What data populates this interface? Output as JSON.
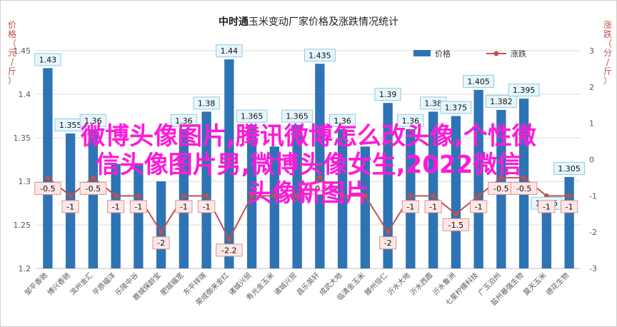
{
  "chart_data": {
    "type": "bar",
    "title_prefix": "中时通",
    "title_rest": "玉米变动厂家价格及涨跌情况统计",
    "ylabel_left": "价格（元/斤）",
    "ylabel_right": "涨跌（分/斤）",
    "ylim_left": [
      1.2,
      1.45
    ],
    "yticks_left": [
      "1.2",
      "1.25",
      "1.3",
      "1.35",
      "1.4",
      "1.45"
    ],
    "ylim_right": [
      -3,
      3
    ],
    "yticks_right": [
      "-3",
      "-2",
      "-1",
      "0",
      "1",
      "2",
      "3"
    ],
    "legend_position": "top-right",
    "grid": true,
    "categories": [
      "邹平香驰",
      "博兴香驰",
      "滨州金汇",
      "平原福洋",
      "乐陵中谷",
      "鹿城保龄宝",
      "肥城福宽",
      "东平祥瑞",
      "荣成御来金红",
      "诸城兴贸",
      "寿光金玉米",
      "诸城兴贸",
      "昌乐英轩",
      "成武大地",
      "临清金玉米",
      "滕州恒仁",
      "沂水大地",
      "沂水西霞",
      "沂水鲁洲",
      "七星柠檬科技",
      "广玉泊州",
      "盐州暴强生物",
      "莫天玉米",
      "德花生物"
    ],
    "series": [
      {
        "name": "价格",
        "type": "bar",
        "color": "#2e74b5",
        "values": [
          1.43,
          1.355,
          1.36,
          1.32,
          1.32,
          1.3,
          1.36,
          1.38,
          1.44,
          1.365,
          1.34,
          1.365,
          1.435,
          1.36,
          1.34,
          1.39,
          1.36,
          1.38,
          1.375,
          1.405,
          1.382,
          1.395,
          1.265,
          1.305
        ],
        "labels": [
          "1.43",
          "1.355",
          "1.36",
          "",
          "",
          "",
          "1.36",
          "1.38",
          "1.44",
          "1.365",
          "",
          "1.365",
          "1.435",
          "1.36",
          "",
          "1.39",
          "1.36",
          "1.38",
          "1.375",
          "1.405",
          "1.382",
          "1.395",
          "1.265",
          "1.305"
        ]
      },
      {
        "name": "涨跌",
        "type": "line",
        "color": "#c0504d",
        "values": [
          -0.5,
          -1,
          -0.5,
          -1,
          -1,
          -2,
          -1,
          -1,
          -2.2,
          -1,
          -1,
          -1,
          -0.5,
          -1,
          -1,
          -2,
          -1,
          -1,
          -1.5,
          -1,
          -0.5,
          -0.5,
          -1,
          -1
        ],
        "labels": [
          "-0.5",
          "-1",
          "-0.5",
          "-1",
          "-1",
          "-2",
          "-1",
          "-1",
          "-2.2",
          "",
          "",
          "",
          "-0.5",
          "",
          "",
          "-2",
          "-1",
          "-1",
          "-1.5",
          "-1",
          "-0.5",
          "-0.5",
          "-1",
          "-1"
        ]
      }
    ]
  },
  "overlay": {
    "line1": "微博头像图片,腾讯微博怎么改头像,个性微",
    "line2": "信头像图片男,微博头像女生,2022微信",
    "line3": "头像新图片"
  }
}
